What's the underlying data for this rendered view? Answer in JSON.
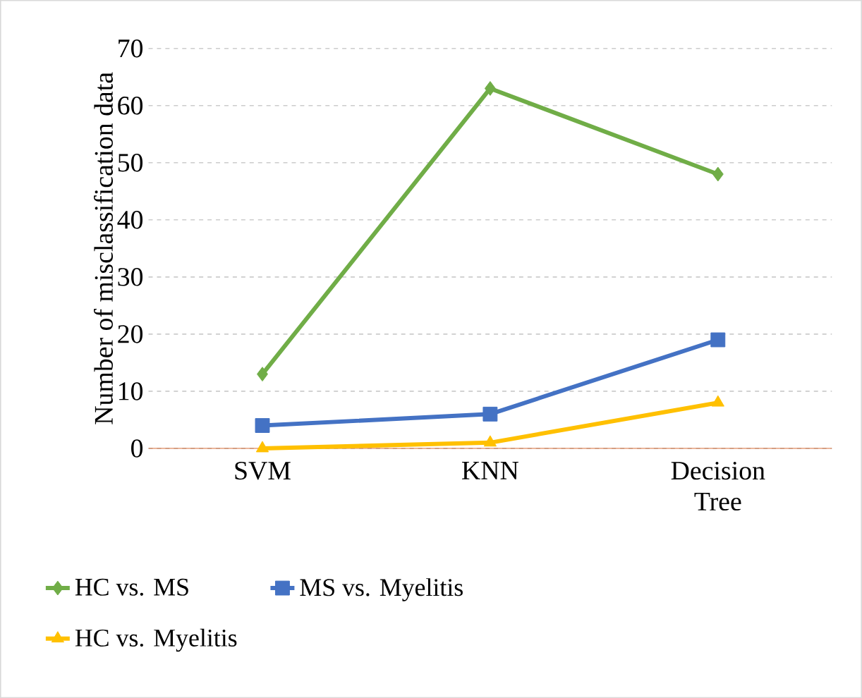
{
  "chart_data": {
    "type": "line",
    "ylabel": "Number of misclassification data",
    "categories": [
      "SVM",
      "KNN",
      "Decision Tree"
    ],
    "series": [
      {
        "name": "HC vs. MS",
        "color": "#70ad47",
        "marker": "diamond",
        "values": [
          13,
          63,
          48
        ]
      },
      {
        "name": "MS vs. Myelitis",
        "color": "#4472c4",
        "marker": "square",
        "values": [
          4,
          6,
          19
        ]
      },
      {
        "name": "HC vs. Myelitis",
        "color": "#ffc000",
        "marker": "triangle",
        "values": [
          0,
          1,
          8
        ]
      }
    ],
    "ylim": [
      0,
      70
    ],
    "yticks": [
      0,
      10,
      20,
      30,
      40,
      50,
      60,
      70
    ],
    "grid": "y",
    "legend": "bottom",
    "line_style": "solid"
  }
}
